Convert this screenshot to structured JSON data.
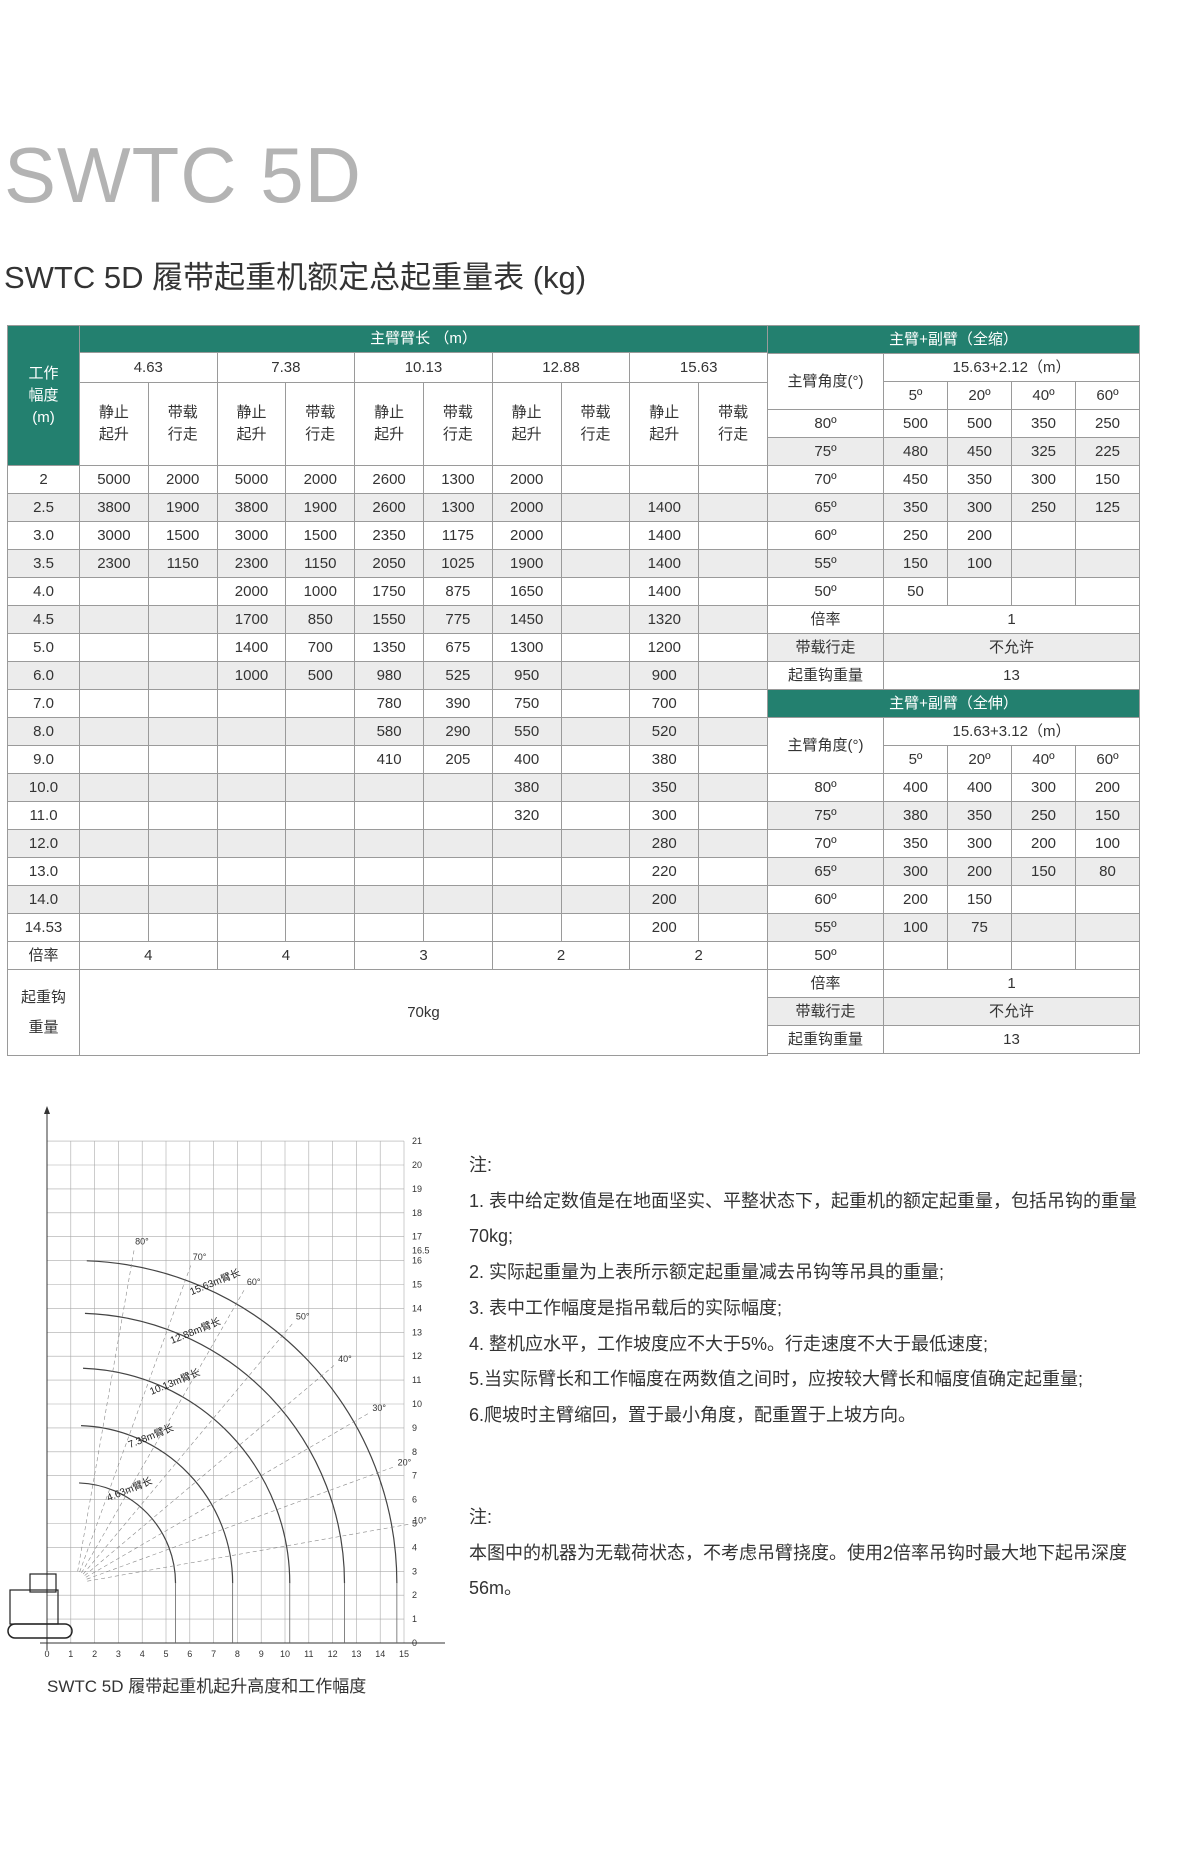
{
  "header": {
    "title": "SWTC 5D",
    "subtitle": "SWTC 5D 履带起重机额定总起重量表 (kg)"
  },
  "main_table": {
    "corner": [
      "工作",
      "幅度",
      "(m)"
    ],
    "boom_header": "主臂臂长 （m）",
    "boom_lengths": [
      "4.63",
      "7.38",
      "10.13",
      "12.88",
      "15.63"
    ],
    "sub_headers": [
      [
        "静止",
        "起升"
      ],
      [
        "带载",
        "行走"
      ]
    ],
    "rows": [
      [
        "2",
        "5000",
        "2000",
        "5000",
        "2000",
        "2600",
        "1300",
        "2000",
        null,
        null,
        null
      ],
      [
        "2.5",
        "3800",
        "1900",
        "3800",
        "1900",
        "2600",
        "1300",
        "2000",
        null,
        "1400",
        null
      ],
      [
        "3.0",
        "3000",
        "1500",
        "3000",
        "1500",
        "2350",
        "1175",
        "2000",
        null,
        "1400",
        null
      ],
      [
        "3.5",
        "2300",
        "1150",
        "2300",
        "1150",
        "2050",
        "1025",
        "1900",
        null,
        "1400",
        null
      ],
      [
        "4.0",
        null,
        null,
        "2000",
        "1000",
        "1750",
        "875",
        "1650",
        null,
        "1400",
        null
      ],
      [
        "4.5",
        null,
        null,
        "1700",
        "850",
        "1550",
        "775",
        "1450",
        null,
        "1320",
        null
      ],
      [
        "5.0",
        null,
        null,
        "1400",
        "700",
        "1350",
        "675",
        "1300",
        null,
        "1200",
        null
      ],
      [
        "6.0",
        null,
        null,
        "1000",
        "500",
        "980",
        "525",
        "950",
        null,
        "900",
        null
      ],
      [
        "7.0",
        null,
        null,
        null,
        null,
        "780",
        "390",
        "750",
        null,
        "700",
        null
      ],
      [
        "8.0",
        null,
        null,
        null,
        null,
        "580",
        "290",
        "550",
        null,
        "520",
        null
      ],
      [
        "9.0",
        null,
        null,
        null,
        null,
        "410",
        "205",
        "400",
        null,
        "380",
        null
      ],
      [
        "10.0",
        null,
        null,
        null,
        null,
        null,
        null,
        "380",
        null,
        "350",
        null
      ],
      [
        "11.0",
        null,
        null,
        null,
        null,
        null,
        null,
        "320",
        null,
        "300",
        null
      ],
      [
        "12.0",
        null,
        null,
        null,
        null,
        null,
        null,
        null,
        null,
        "280",
        null
      ],
      [
        "13.0",
        null,
        null,
        null,
        null,
        null,
        null,
        null,
        null,
        "220",
        null
      ],
      [
        "14.0",
        null,
        null,
        null,
        null,
        null,
        null,
        null,
        null,
        "200",
        null
      ],
      [
        "14.53",
        null,
        null,
        null,
        null,
        null,
        null,
        null,
        null,
        "200",
        null
      ]
    ],
    "ratio_label": "倍率",
    "ratios": [
      "4",
      "4",
      "3",
      "2",
      "2"
    ],
    "hook_label": [
      "起重钩",
      "重量"
    ],
    "hook_weight": "70kg"
  },
  "jib_tables": [
    {
      "title": "主臂+副臂（全缩）",
      "length": "15.63+2.12（m）",
      "angle_label": "主臂角度(°)",
      "offsets": [
        "5º",
        "20º",
        "40º",
        "60º"
      ],
      "rows": [
        [
          "80º",
          "500",
          "500",
          "350",
          "250"
        ],
        [
          "75º",
          "480",
          "450",
          "325",
          "225"
        ],
        [
          "70º",
          "450",
          "350",
          "300",
          "150"
        ],
        [
          "65º",
          "350",
          "300",
          "250",
          "125"
        ],
        [
          "60º",
          "250",
          "200",
          null,
          null
        ],
        [
          "55º",
          "150",
          "100",
          null,
          null
        ],
        [
          "50º",
          "50",
          null,
          null,
          null
        ]
      ],
      "footer": [
        [
          "倍率",
          "1"
        ],
        [
          "带载行走",
          "不允许"
        ],
        [
          "起重钩重量",
          "13"
        ]
      ]
    },
    {
      "title": "主臂+副臂（全伸）",
      "length": "15.63+3.12（m）",
      "angle_label": "主臂角度(°)",
      "offsets": [
        "5º",
        "20º",
        "40º",
        "60º"
      ],
      "rows": [
        [
          "80º",
          "400",
          "400",
          "300",
          "200"
        ],
        [
          "75º",
          "380",
          "350",
          "250",
          "150"
        ],
        [
          "70º",
          "350",
          "300",
          "200",
          "100"
        ],
        [
          "65º",
          "300",
          "200",
          "150",
          "80"
        ],
        [
          "60º",
          "200",
          "150",
          null,
          null
        ],
        [
          "55º",
          "100",
          "75",
          null,
          null
        ],
        [
          "50º",
          null,
          null,
          null,
          null
        ]
      ],
      "footer": [
        [
          "倍率",
          "1"
        ],
        [
          "带载行走",
          "不允许"
        ],
        [
          "起重钩重量",
          "13"
        ]
      ]
    }
  ],
  "notes": {
    "heading": "注:",
    "items": [
      "1. 表中给定数值是在地面坚实、平整状态下，起重机的额定起重量，包括吊钩的重量70kg;",
      "2. 实际起重量为上表所示额定起重量减去吊钩等吊具的重量;",
      "3. 表中工作幅度是指吊载后的实际幅度;",
      "4. 整机应水平，工作坡度应不大于5%。行走速度不大于最低速度;",
      "5.当实际臂长和工作幅度在两数值之间时，应按较大臂长和幅度值确定起重量;",
      "6.爬坡时主臂缩回，置于最小角度，配重置于上坡方向。"
    ]
  },
  "notes2": {
    "heading": "注:",
    "text": "本图中的机器为无载荷状态，不考虑吊臂挠度。使用2倍率吊钩时最大地下起吊深度56m。"
  },
  "diagram": {
    "xticks": [
      0,
      1,
      2,
      3,
      4,
      5,
      6,
      7,
      8,
      9,
      10,
      11,
      12,
      13,
      14,
      15
    ],
    "yticks": [
      0,
      1,
      2,
      3,
      4,
      5,
      6,
      7,
      8,
      9,
      10,
      11,
      12,
      13,
      14,
      15,
      16,
      17,
      18,
      19,
      20,
      21
    ],
    "extra_label": "16.5",
    "angles": [
      "10°",
      "20°",
      "30°",
      "40°",
      "50°",
      "60°",
      "70°",
      "80°"
    ],
    "booms": [
      "4.63m臂长",
      "7.38m臂长",
      "10.13m臂长",
      "12.88m臂长",
      "15.63m臂长"
    ],
    "caption": "SWTC 5D 履带起重机起升高度和工作幅度"
  }
}
